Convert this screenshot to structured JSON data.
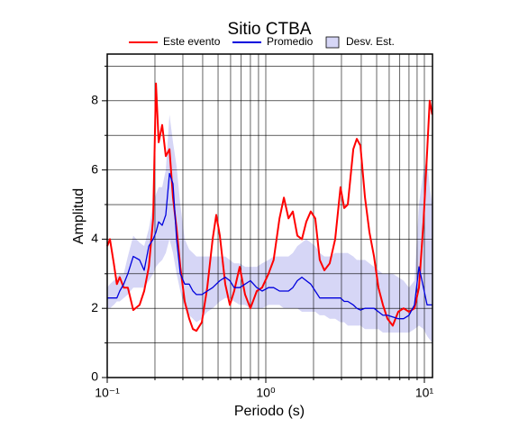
{
  "chart_data": {
    "type": "line",
    "title": "Sitio CTBA",
    "xlabel": "Periodo (s)",
    "ylabel": "Amplitud",
    "xscale": "log",
    "xlim": [
      0.1,
      11.25
    ],
    "ylim": [
      0,
      9.35
    ],
    "xticks": [
      {
        "value": 0.1,
        "label": "10⁻¹"
      },
      {
        "value": 1,
        "label": "10⁰"
      },
      {
        "value": 10,
        "label": "10¹"
      }
    ],
    "yticks": [
      0,
      2,
      4,
      6,
      8
    ],
    "xgrid": [
      0.2,
      0.3,
      0.4,
      0.5,
      0.6,
      0.7,
      0.8,
      0.9,
      2,
      3,
      4,
      5,
      6,
      7,
      8,
      9
    ],
    "ygrid": [
      1,
      3,
      5,
      7,
      9
    ],
    "grid": true,
    "legend": "top",
    "x": [
      0.1,
      0.104,
      0.11,
      0.115,
      0.12,
      0.127,
      0.135,
      0.146,
      0.16,
      0.171,
      0.183,
      0.195,
      0.203,
      0.211,
      0.222,
      0.234,
      0.247,
      0.26,
      0.274,
      0.289,
      0.308,
      0.329,
      0.347,
      0.365,
      0.395,
      0.427,
      0.462,
      0.487,
      0.513,
      0.555,
      0.593,
      0.632,
      0.684,
      0.74,
      0.8,
      0.877,
      0.948,
      1.04,
      1.12,
      1.22,
      1.3,
      1.39,
      1.48,
      1.58,
      1.69,
      1.8,
      1.92,
      2.05,
      2.19,
      2.34,
      2.53,
      2.74,
      2.96,
      3.12,
      3.29,
      3.56,
      3.75,
      3.95,
      4.22,
      4.5,
      4.81,
      5.13,
      5.48,
      5.85,
      6.32,
      6.84,
      7.39,
      8.0,
      8.66,
      9.25,
      9.87,
      10.4,
      10.8,
      11.2
    ],
    "series": [
      {
        "name": "Este evento",
        "color": "#ff0000",
        "values": [
          3.8,
          4.0,
          3.3,
          2.7,
          2.9,
          2.6,
          2.6,
          1.95,
          2.1,
          2.5,
          3.2,
          4.6,
          8.5,
          6.8,
          7.3,
          6.4,
          6.6,
          5.2,
          4.3,
          3.2,
          2.2,
          1.7,
          1.4,
          1.35,
          1.6,
          2.6,
          4.0,
          4.7,
          4.1,
          2.7,
          2.1,
          2.5,
          3.2,
          2.4,
          2.0,
          2.5,
          2.6,
          3.0,
          3.4,
          4.6,
          5.2,
          4.6,
          4.8,
          4.1,
          4.0,
          4.5,
          4.8,
          4.6,
          3.4,
          3.1,
          3.3,
          4.0,
          5.5,
          4.9,
          5.0,
          6.6,
          6.9,
          6.7,
          5.2,
          4.2,
          3.5,
          2.6,
          2.1,
          1.7,
          1.5,
          1.9,
          2.0,
          1.9,
          2.0,
          2.6,
          4.5,
          6.5,
          8.0,
          7.6
        ]
      },
      {
        "name": "Promedio",
        "color": "#0000dd",
        "values": [
          2.3,
          2.3,
          2.3,
          2.3,
          2.5,
          2.7,
          3.0,
          3.5,
          3.4,
          3.1,
          3.8,
          4.0,
          4.2,
          4.5,
          4.4,
          4.7,
          5.9,
          5.6,
          4.0,
          3.0,
          2.7,
          2.7,
          2.5,
          2.4,
          2.4,
          2.5,
          2.6,
          2.7,
          2.8,
          2.9,
          2.8,
          2.6,
          2.6,
          2.7,
          2.8,
          2.6,
          2.5,
          2.6,
          2.6,
          2.5,
          2.5,
          2.5,
          2.6,
          2.8,
          2.9,
          2.8,
          2.7,
          2.5,
          2.3,
          2.3,
          2.3,
          2.3,
          2.3,
          2.2,
          2.2,
          2.1,
          2.0,
          1.95,
          2.0,
          2.0,
          2.0,
          1.9,
          1.8,
          1.8,
          1.75,
          1.7,
          1.7,
          1.8,
          2.1,
          3.2,
          2.6,
          2.1,
          2.1,
          2.1
        ]
      },
      {
        "name": "Desv. Est.",
        "color": "#d6d6f6",
        "band": true,
        "lower": [
          2.0,
          2.0,
          2.1,
          2.2,
          2.2,
          2.3,
          2.4,
          2.6,
          2.6,
          2.6,
          2.8,
          3.0,
          3.2,
          3.3,
          3.4,
          3.6,
          4.0,
          3.6,
          3.0,
          2.5,
          2.0,
          1.8,
          1.7,
          1.6,
          1.7,
          1.9,
          2.0,
          2.1,
          2.2,
          2.3,
          2.3,
          2.2,
          2.1,
          2.1,
          2.0,
          2.0,
          2.0,
          2.1,
          2.1,
          2.1,
          2.0,
          2.0,
          2.0,
          2.0,
          1.9,
          1.9,
          1.9,
          1.9,
          1.8,
          1.8,
          1.7,
          1.7,
          1.6,
          1.6,
          1.5,
          1.5,
          1.5,
          1.5,
          1.4,
          1.4,
          1.4,
          1.4,
          1.3,
          1.3,
          1.3,
          1.3,
          1.3,
          1.3,
          1.4,
          1.5,
          1.4,
          1.2,
          1.1,
          1.0
        ],
        "upper": [
          2.6,
          2.7,
          2.8,
          2.9,
          3.0,
          3.0,
          3.5,
          4.1,
          3.9,
          3.8,
          4.3,
          5.0,
          5.3,
          5.5,
          5.5,
          6.0,
          7.6,
          6.8,
          6.1,
          5.0,
          4.0,
          3.7,
          3.6,
          3.5,
          3.5,
          3.5,
          3.5,
          3.5,
          3.5,
          3.5,
          3.4,
          3.3,
          3.3,
          3.2,
          3.2,
          3.2,
          3.3,
          3.4,
          3.5,
          3.5,
          3.5,
          3.5,
          3.6,
          3.8,
          3.9,
          4.0,
          3.9,
          3.8,
          3.6,
          3.5,
          3.5,
          3.6,
          3.6,
          3.6,
          3.6,
          3.5,
          3.4,
          3.4,
          3.4,
          3.3,
          3.2,
          3.1,
          3.0,
          3.0,
          3.0,
          2.9,
          2.8,
          2.6,
          2.8,
          5.0,
          6.0,
          6.3,
          5.5,
          5.0
        ]
      }
    ]
  }
}
